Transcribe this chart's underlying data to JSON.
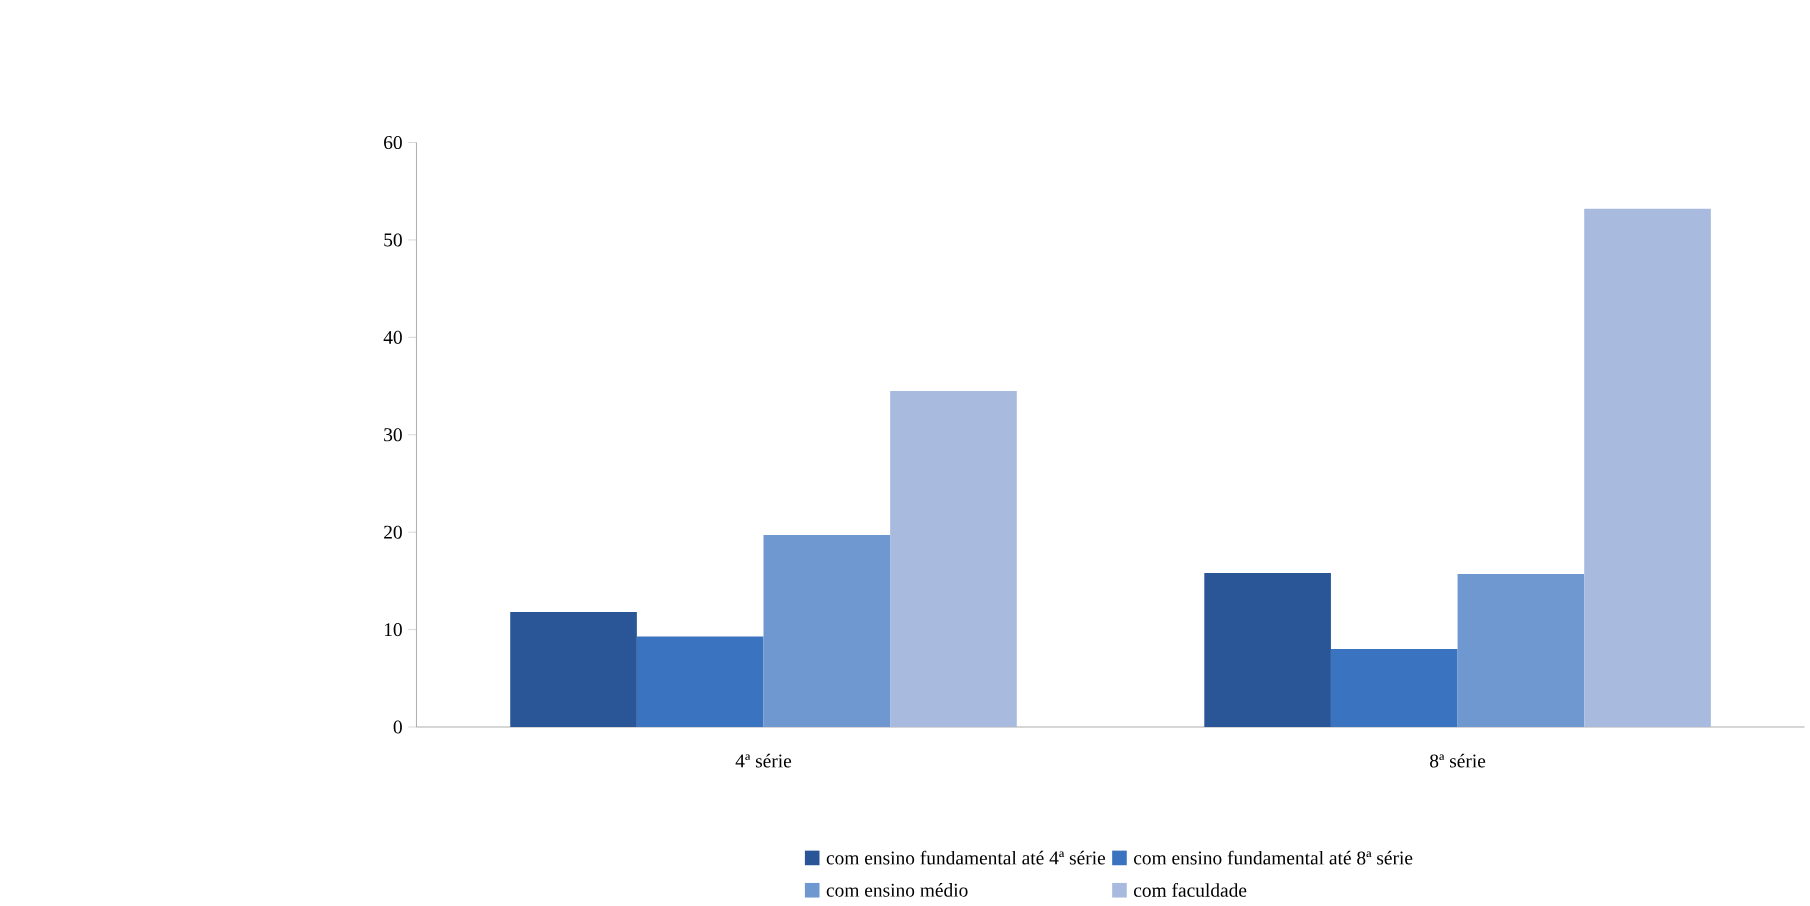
{
  "chart_data": {
    "type": "bar",
    "categories": [
      "4ª série",
      "8ª série"
    ],
    "series": [
      {
        "name": "com ensino fundamental até 4ª série",
        "color": "#2a5597",
        "values": [
          11.8,
          15.8
        ]
      },
      {
        "name": "com ensino fundamental até 8ª série",
        "color": "#3a73c0",
        "values": [
          9.3,
          8.0
        ]
      },
      {
        "name": "com ensino médio",
        "color": "#6f97d0",
        "values": [
          19.7,
          15.7
        ]
      },
      {
        "name": "com faculdade",
        "color": "#a8bade",
        "values": [
          34.5,
          53.2
        ]
      }
    ],
    "ylim": [
      0,
      60
    ],
    "yticks": [
      0,
      10,
      20,
      30,
      40,
      50,
      60
    ],
    "grid": false,
    "legend": "bottom"
  }
}
